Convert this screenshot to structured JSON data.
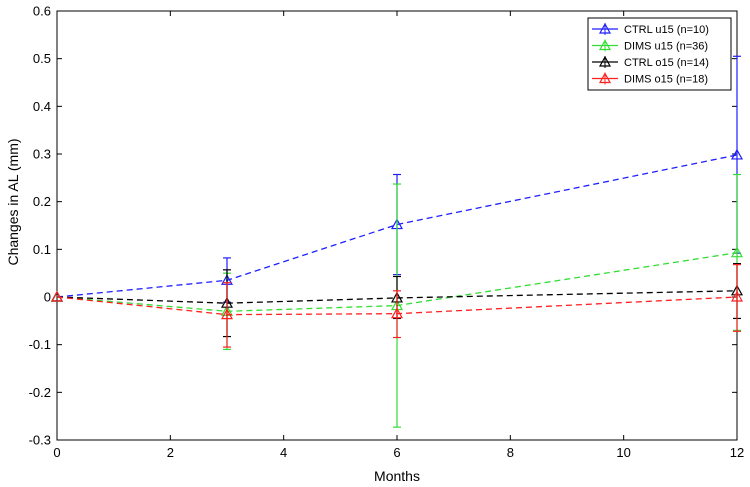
{
  "chart_data": {
    "type": "line",
    "xlabel": "Months",
    "ylabel": "Changes in AL (mm)",
    "xlim": [
      0,
      12
    ],
    "ylim": [
      -0.3,
      0.6
    ],
    "xticks": [
      0,
      2,
      4,
      6,
      8,
      10,
      12
    ],
    "yticks": [
      -0.3,
      -0.2,
      -0.1,
      0,
      0.1,
      0.2,
      0.3,
      0.4,
      0.5,
      0.6
    ],
    "ytick_labels": [
      "-0.3",
      "-0.2",
      "-0.1",
      "0",
      "0.1",
      "0.2",
      "0.3",
      "0.4",
      "0.5",
      "0.6"
    ],
    "xtick_labels": [
      "0",
      "2",
      "4",
      "6",
      "8",
      "10",
      "12"
    ],
    "grid": false,
    "legend_position": "top-right",
    "marker": "triangle",
    "line_style": "dashed",
    "x": [
      0,
      3,
      6,
      12
    ],
    "series": [
      {
        "name": "CTRL u15 (n=10)",
        "color": "#1f1fff",
        "values": [
          0,
          0.035,
          0.152,
          0.298
        ],
        "err_low": [
          0,
          0.035,
          0.152,
          0.298
        ],
        "err_high": [
          0,
          0.082,
          0.257,
          0.505
        ],
        "err_lower": [
          0,
          -0.011,
          0.047,
          0.092
        ]
      },
      {
        "name": "DIMS u15 (n=36)",
        "color": "#33dd33",
        "values": [
          0,
          -0.03,
          -0.018,
          0.093
        ],
        "err_high": [
          0,
          0.05,
          0.237,
          0.257
        ],
        "err_lower": [
          0,
          -0.11,
          -0.273,
          -0.07
        ]
      },
      {
        "name": "CTRL o15 (n=14)",
        "color": "#000000",
        "values": [
          0,
          -0.013,
          -0.002,
          0.013
        ],
        "err_high": [
          0,
          0.057,
          0.043,
          0.07
        ],
        "err_lower": [
          0,
          -0.083,
          -0.045,
          -0.045
        ]
      },
      {
        "name": "DIMS o15 (n=18)",
        "color": "#ff2020",
        "values": [
          0,
          -0.037,
          -0.035,
          0
        ],
        "err_high": [
          0,
          0.03,
          0.013,
          0.068
        ],
        "err_lower": [
          0,
          -0.105,
          -0.085,
          -0.072
        ]
      }
    ]
  }
}
